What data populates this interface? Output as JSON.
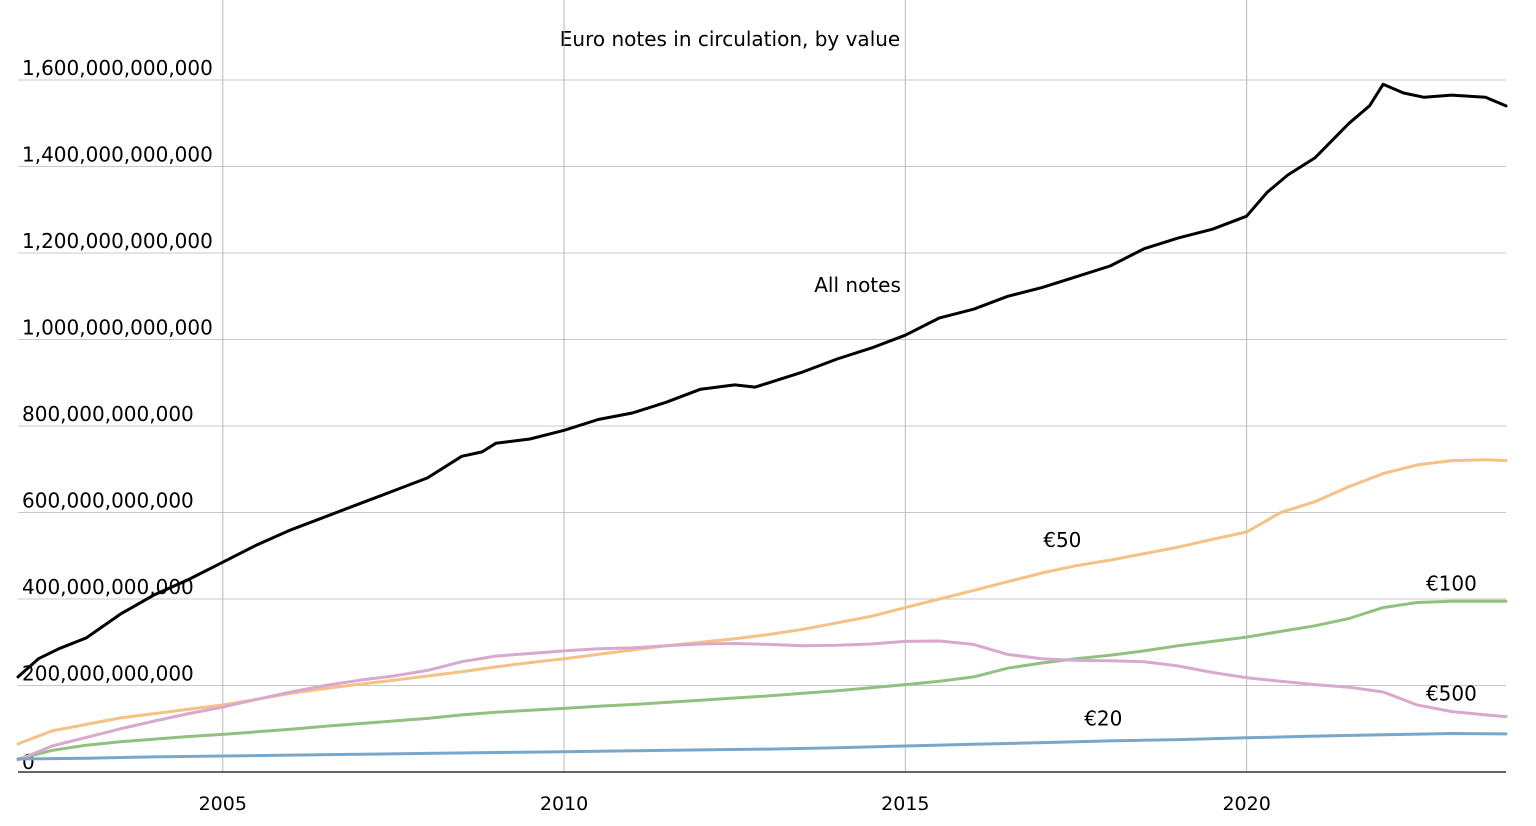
{
  "chart_data": {
    "type": "line",
    "title": "Euro notes in circulation, by value",
    "xlabel": "",
    "ylabel": "",
    "xlim": [
      2002.0,
      2023.8
    ],
    "ylim": [
      0,
      1600000000000
    ],
    "yticks": [
      {
        "value": 0,
        "label": "0"
      },
      {
        "value": 200000000000,
        "label": "200,000,000,000"
      },
      {
        "value": 400000000000,
        "label": "400,000,000,000"
      },
      {
        "value": 600000000000,
        "label": "600,000,000,000"
      },
      {
        "value": 800000000000,
        "label": "800,000,000,000"
      },
      {
        "value": 1000000000000,
        "label": "1,000,000,000,000"
      },
      {
        "value": 1200000000000,
        "label": "1,200,000,000,000"
      },
      {
        "value": 1400000000000,
        "label": "1,400,000,000,000"
      },
      {
        "value": 1600000000000,
        "label": "1,600,000,000,000"
      }
    ],
    "xticks": [
      {
        "value": 2005,
        "label": "2005"
      },
      {
        "value": 2010,
        "label": "2010"
      },
      {
        "value": 2015,
        "label": "2015"
      },
      {
        "value": 2020,
        "label": "2020"
      }
    ],
    "grid": true,
    "series": [
      {
        "name": "All notes",
        "color": "#000000",
        "x": [
          2002.0,
          2002.3,
          2002.6,
          2003.0,
          2003.5,
          2004.0,
          2004.5,
          2005.0,
          2005.5,
          2006.0,
          2006.5,
          2007.0,
          2007.5,
          2008.0,
          2008.5,
          2008.8,
          2009.0,
          2009.5,
          2010.0,
          2010.5,
          2011.0,
          2011.5,
          2012.0,
          2012.5,
          2012.8,
          2013.0,
          2013.5,
          2014.0,
          2014.5,
          2015.0,
          2015.5,
          2016.0,
          2016.5,
          2017.0,
          2017.5,
          2018.0,
          2018.5,
          2019.0,
          2019.5,
          2020.0,
          2020.3,
          2020.6,
          2021.0,
          2021.5,
          2021.8,
          2022.0,
          2022.3,
          2022.6,
          2023.0,
          2023.5,
          2023.8
        ],
        "values": [
          220000000000,
          262000000000,
          285000000000,
          310000000000,
          365000000000,
          410000000000,
          445000000000,
          485000000000,
          525000000000,
          560000000000,
          590000000000,
          620000000000,
          650000000000,
          680000000000,
          730000000000,
          740000000000,
          760000000000,
          770000000000,
          790000000000,
          815000000000,
          830000000000,
          855000000000,
          885000000000,
          895000000000,
          890000000000,
          900000000000,
          925000000000,
          955000000000,
          980000000000,
          1010000000000,
          1050000000000,
          1070000000000,
          1100000000000,
          1120000000000,
          1145000000000,
          1170000000000,
          1210000000000,
          1235000000000,
          1255000000000,
          1285000000000,
          1340000000000,
          1380000000000,
          1420000000000,
          1500000000000,
          1540000000000,
          1590000000000,
          1570000000000,
          1560000000000,
          1565000000000,
          1560000000000,
          1540000000000
        ]
      },
      {
        "name": "€50",
        "color": "#f5c185",
        "x": [
          2002.0,
          2002.5,
          2003.0,
          2003.5,
          2004.0,
          2004.5,
          2005.0,
          2005.5,
          2006.0,
          2006.5,
          2007.0,
          2007.5,
          2008.0,
          2008.5,
          2009.0,
          2009.5,
          2010.0,
          2010.5,
          2011.0,
          2011.5,
          2012.0,
          2012.5,
          2013.0,
          2013.5,
          2014.0,
          2014.5,
          2015.0,
          2015.5,
          2016.0,
          2016.5,
          2017.0,
          2017.5,
          2018.0,
          2018.5,
          2019.0,
          2019.5,
          2020.0,
          2020.5,
          2021.0,
          2021.5,
          2022.0,
          2022.5,
          2023.0,
          2023.5,
          2023.8
        ],
        "values": [
          65000000000,
          95000000000,
          110000000000,
          125000000000,
          135000000000,
          145000000000,
          155000000000,
          168000000000,
          182000000000,
          193000000000,
          203000000000,
          212000000000,
          222000000000,
          232000000000,
          243000000000,
          253000000000,
          262000000000,
          272000000000,
          282000000000,
          292000000000,
          300000000000,
          308000000000,
          318000000000,
          330000000000,
          345000000000,
          360000000000,
          380000000000,
          400000000000,
          420000000000,
          440000000000,
          460000000000,
          477000000000,
          490000000000,
          505000000000,
          520000000000,
          538000000000,
          555000000000,
          600000000000,
          625000000000,
          660000000000,
          690000000000,
          710000000000,
          720000000000,
          722000000000,
          720000000000
        ]
      },
      {
        "name": "€100",
        "color": "#92c07f",
        "x": [
          2002.0,
          2002.5,
          2003.0,
          2003.5,
          2004.0,
          2004.5,
          2005.0,
          2005.5,
          2006.0,
          2006.5,
          2007.0,
          2007.5,
          2008.0,
          2008.5,
          2009.0,
          2009.5,
          2010.0,
          2010.5,
          2011.0,
          2011.5,
          2012.0,
          2012.5,
          2013.0,
          2013.5,
          2014.0,
          2014.5,
          2015.0,
          2015.5,
          2016.0,
          2016.5,
          2017.0,
          2017.5,
          2018.0,
          2018.5,
          2019.0,
          2019.5,
          2020.0,
          2020.5,
          2021.0,
          2021.5,
          2022.0,
          2022.5,
          2023.0,
          2023.5,
          2023.8
        ],
        "values": [
          30000000000,
          50000000000,
          62000000000,
          70000000000,
          76000000000,
          82000000000,
          87000000000,
          93000000000,
          99000000000,
          106000000000,
          112000000000,
          118000000000,
          124000000000,
          132000000000,
          138000000000,
          143000000000,
          147000000000,
          152000000000,
          156000000000,
          161000000000,
          166000000000,
          171000000000,
          176000000000,
          182000000000,
          188000000000,
          195000000000,
          202000000000,
          210000000000,
          220000000000,
          240000000000,
          252000000000,
          262000000000,
          270000000000,
          280000000000,
          292000000000,
          302000000000,
          312000000000,
          325000000000,
          338000000000,
          355000000000,
          380000000000,
          392000000000,
          395000000000,
          395000000000,
          395000000000
        ]
      },
      {
        "name": "€500",
        "color": "#d8a9cf",
        "x": [
          2002.0,
          2002.5,
          2003.0,
          2003.5,
          2004.0,
          2004.5,
          2005.0,
          2005.5,
          2006.0,
          2006.5,
          2007.0,
          2007.5,
          2008.0,
          2008.5,
          2009.0,
          2009.5,
          2010.0,
          2010.5,
          2011.0,
          2011.5,
          2012.0,
          2012.5,
          2013.0,
          2013.5,
          2014.0,
          2014.5,
          2015.0,
          2015.5,
          2016.0,
          2016.5,
          2017.0,
          2017.5,
          2018.0,
          2018.5,
          2019.0,
          2019.5,
          2020.0,
          2020.5,
          2021.0,
          2021.5,
          2022.0,
          2022.5,
          2023.0,
          2023.5,
          2023.8
        ],
        "values": [
          28000000000,
          60000000000,
          80000000000,
          100000000000,
          118000000000,
          135000000000,
          150000000000,
          168000000000,
          185000000000,
          200000000000,
          212000000000,
          222000000000,
          235000000000,
          255000000000,
          268000000000,
          274000000000,
          280000000000,
          285000000000,
          287000000000,
          292000000000,
          296000000000,
          297000000000,
          295000000000,
          292000000000,
          293000000000,
          296000000000,
          302000000000,
          303000000000,
          295000000000,
          272000000000,
          262000000000,
          258000000000,
          257000000000,
          255000000000,
          245000000000,
          230000000000,
          218000000000,
          210000000000,
          202000000000,
          196000000000,
          185000000000,
          155000000000,
          140000000000,
          132000000000,
          128000000000
        ]
      },
      {
        "name": "€20",
        "color": "#78a7cb",
        "x": [
          2002.0,
          2003.0,
          2004.0,
          2005.0,
          2006.0,
          2007.0,
          2008.0,
          2009.0,
          2010.0,
          2011.0,
          2012.0,
          2013.0,
          2014.0,
          2015.0,
          2016.0,
          2017.0,
          2018.0,
          2019.0,
          2020.0,
          2021.0,
          2022.0,
          2023.0,
          2023.8
        ],
        "values": [
          30000000000,
          32000000000,
          35000000000,
          37000000000,
          39000000000,
          41000000000,
          43000000000,
          45000000000,
          47000000000,
          49000000000,
          51000000000,
          53000000000,
          56000000000,
          60000000000,
          64000000000,
          68000000000,
          72000000000,
          75000000000,
          79000000000,
          83000000000,
          86000000000,
          89000000000,
          88000000000
        ]
      }
    ],
    "annotations": [
      {
        "series": "All notes",
        "text": "All notes",
        "x": 2014.3,
        "y": 1110000000000
      },
      {
        "series": "€50",
        "text": "€50",
        "x": 2017.3,
        "y": 520000000000
      },
      {
        "series": "€100",
        "text": "€100",
        "x": 2023.0,
        "y": 420000000000
      },
      {
        "series": "€500",
        "text": "€500",
        "x": 2023.0,
        "y": 165000000000
      },
      {
        "series": "€20",
        "text": "€20",
        "x": 2017.9,
        "y": 108000000000
      }
    ]
  }
}
